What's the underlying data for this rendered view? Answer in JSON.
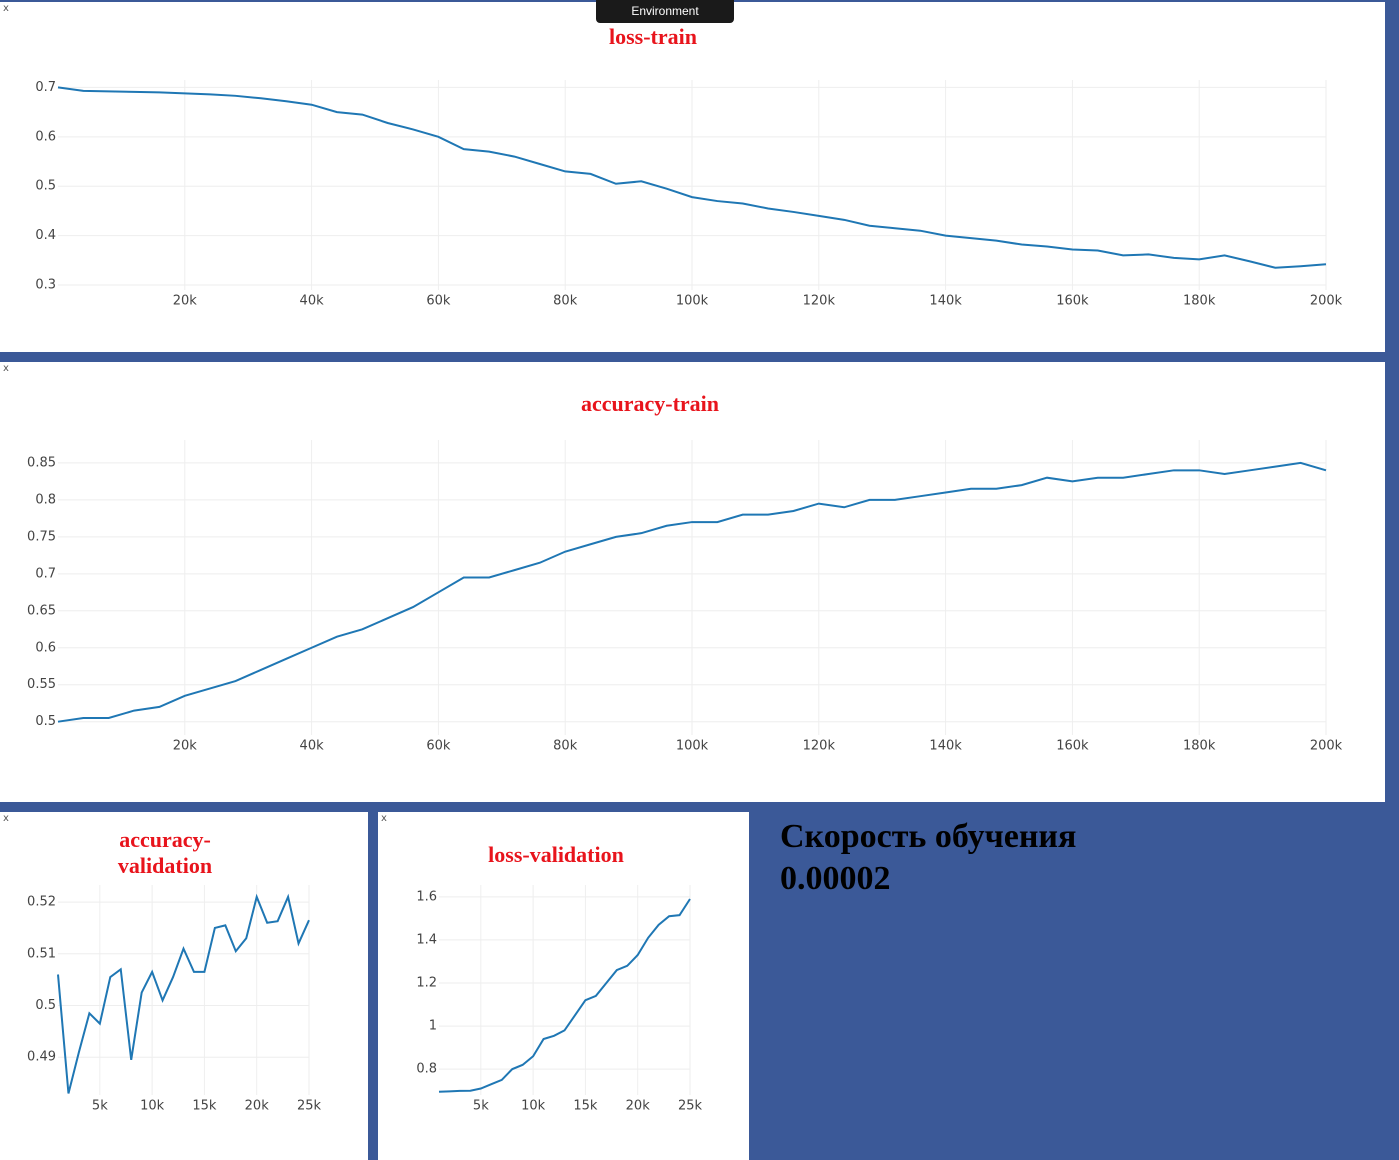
{
  "ui": {
    "environment_button": "Environment",
    "close_icon": "x",
    "note": [
      "Скорость обучения",
      "0.00002"
    ]
  },
  "chart_data": [
    {
      "type": "line",
      "title": "loss-train",
      "color": "#1f77b4",
      "grid": true,
      "x": [
        0,
        4000,
        8000,
        12000,
        16000,
        20000,
        24000,
        28000,
        32000,
        36000,
        40000,
        44000,
        48000,
        52000,
        56000,
        60000,
        64000,
        68000,
        72000,
        76000,
        80000,
        84000,
        88000,
        92000,
        96000,
        100000,
        104000,
        108000,
        112000,
        116000,
        120000,
        124000,
        128000,
        132000,
        136000,
        140000,
        144000,
        148000,
        152000,
        156000,
        160000,
        164000,
        168000,
        172000,
        176000,
        180000,
        184000,
        188000,
        192000,
        196000,
        200000
      ],
      "values": [
        0.7,
        0.693,
        0.692,
        0.691,
        0.69,
        0.688,
        0.686,
        0.683,
        0.678,
        0.672,
        0.665,
        0.65,
        0.645,
        0.628,
        0.615,
        0.6,
        0.575,
        0.57,
        0.56,
        0.545,
        0.53,
        0.525,
        0.505,
        0.51,
        0.495,
        0.478,
        0.47,
        0.465,
        0.455,
        0.448,
        0.44,
        0.432,
        0.42,
        0.415,
        0.41,
        0.4,
        0.395,
        0.39,
        0.382,
        0.378,
        0.372,
        0.37,
        0.36,
        0.362,
        0.355,
        0.352,
        0.36,
        0.348,
        0.335,
        0.338,
        0.342
      ],
      "xlim": [
        0,
        200000
      ],
      "ylim": [
        0.29,
        0.715
      ],
      "xticks": [
        {
          "value": 20000,
          "label": "20k"
        },
        {
          "value": 40000,
          "label": "40k"
        },
        {
          "value": 60000,
          "label": "60k"
        },
        {
          "value": 80000,
          "label": "80k"
        },
        {
          "value": 100000,
          "label": "100k"
        },
        {
          "value": 120000,
          "label": "120k"
        },
        {
          "value": 140000,
          "label": "140k"
        },
        {
          "value": 160000,
          "label": "160k"
        },
        {
          "value": 180000,
          "label": "180k"
        },
        {
          "value": 200000,
          "label": "200k"
        }
      ],
      "yticks": [
        0.3,
        0.4,
        0.5,
        0.6,
        0.7
      ]
    },
    {
      "type": "line",
      "title": "accuracy-train",
      "color": "#1f77b4",
      "grid": true,
      "x": [
        0,
        4000,
        8000,
        12000,
        16000,
        20000,
        24000,
        28000,
        32000,
        36000,
        40000,
        44000,
        48000,
        52000,
        56000,
        60000,
        64000,
        68000,
        72000,
        76000,
        80000,
        84000,
        88000,
        92000,
        96000,
        100000,
        104000,
        108000,
        112000,
        116000,
        120000,
        124000,
        128000,
        132000,
        136000,
        140000,
        144000,
        148000,
        152000,
        156000,
        160000,
        164000,
        168000,
        172000,
        176000,
        180000,
        184000,
        188000,
        192000,
        196000,
        200000
      ],
      "values": [
        0.5,
        0.505,
        0.505,
        0.515,
        0.52,
        0.535,
        0.545,
        0.555,
        0.57,
        0.585,
        0.6,
        0.615,
        0.625,
        0.64,
        0.655,
        0.675,
        0.695,
        0.695,
        0.705,
        0.715,
        0.73,
        0.74,
        0.75,
        0.755,
        0.765,
        0.77,
        0.77,
        0.78,
        0.78,
        0.785,
        0.795,
        0.79,
        0.8,
        0.8,
        0.805,
        0.81,
        0.815,
        0.815,
        0.82,
        0.83,
        0.825,
        0.83,
        0.83,
        0.835,
        0.84,
        0.84,
        0.835,
        0.84,
        0.845,
        0.85,
        0.84
      ],
      "xlim": [
        0,
        200000
      ],
      "ylim": [
        0.482,
        0.881
      ],
      "xticks": [
        {
          "value": 20000,
          "label": "20k"
        },
        {
          "value": 40000,
          "label": "40k"
        },
        {
          "value": 60000,
          "label": "60k"
        },
        {
          "value": 80000,
          "label": "80k"
        },
        {
          "value": 100000,
          "label": "100k"
        },
        {
          "value": 120000,
          "label": "120k"
        },
        {
          "value": 140000,
          "label": "140k"
        },
        {
          "value": 160000,
          "label": "160k"
        },
        {
          "value": 180000,
          "label": "180k"
        },
        {
          "value": 200000,
          "label": "200k"
        }
      ],
      "yticks": [
        0.5,
        0.55,
        0.6,
        0.65,
        0.7,
        0.75,
        0.8,
        0.85
      ]
    },
    {
      "type": "line",
      "title": "accuracy-validation",
      "color": "#1f77b4",
      "grid": true,
      "x": [
        1000,
        2000,
        3000,
        4000,
        5000,
        6000,
        7000,
        8000,
        9000,
        10000,
        11000,
        12000,
        13000,
        14000,
        15000,
        16000,
        17000,
        18000,
        19000,
        20000,
        21000,
        22000,
        23000,
        24000,
        25000
      ],
      "values": [
        0.506,
        0.483,
        0.491,
        0.4985,
        0.4965,
        0.5055,
        0.507,
        0.4895,
        0.5025,
        0.5065,
        0.501,
        0.5055,
        0.511,
        0.5065,
        0.5065,
        0.515,
        0.5155,
        0.5105,
        0.513,
        0.521,
        0.516,
        0.5163,
        0.521,
        0.512,
        0.5165
      ],
      "xlim": [
        1000,
        25000
      ],
      "ylim": [
        0.4827,
        0.5233
      ],
      "xticks": [
        {
          "value": 5000,
          "label": "5k"
        },
        {
          "value": 10000,
          "label": "10k"
        },
        {
          "value": 15000,
          "label": "15k"
        },
        {
          "value": 20000,
          "label": "20k"
        },
        {
          "value": 25000,
          "label": "25k"
        }
      ],
      "yticks": [
        0.49,
        0.5,
        0.51,
        0.52
      ]
    },
    {
      "type": "line",
      "title": "loss-validation",
      "color": "#1f77b4",
      "grid": true,
      "x": [
        1000,
        2000,
        3000,
        4000,
        5000,
        6000,
        7000,
        8000,
        9000,
        10000,
        11000,
        12000,
        13000,
        14000,
        15000,
        16000,
        17000,
        18000,
        19000,
        20000,
        21000,
        22000,
        23000,
        24000,
        25000
      ],
      "values": [
        0.695,
        0.697,
        0.699,
        0.7,
        0.71,
        0.73,
        0.75,
        0.8,
        0.82,
        0.86,
        0.94,
        0.955,
        0.98,
        1.05,
        1.12,
        1.14,
        1.2,
        1.26,
        1.28,
        1.33,
        1.41,
        1.47,
        1.51,
        1.515,
        1.59
      ],
      "xlim": [
        1000,
        25000
      ],
      "ylim": [
        0.68,
        1.655
      ],
      "xticks": [
        {
          "value": 5000,
          "label": "5k"
        },
        {
          "value": 10000,
          "label": "10k"
        },
        {
          "value": 15000,
          "label": "15k"
        },
        {
          "value": 20000,
          "label": "20k"
        },
        {
          "value": 25000,
          "label": "25k"
        }
      ],
      "yticks": [
        0.8,
        1,
        1.2,
        1.4,
        1.6
      ]
    }
  ]
}
